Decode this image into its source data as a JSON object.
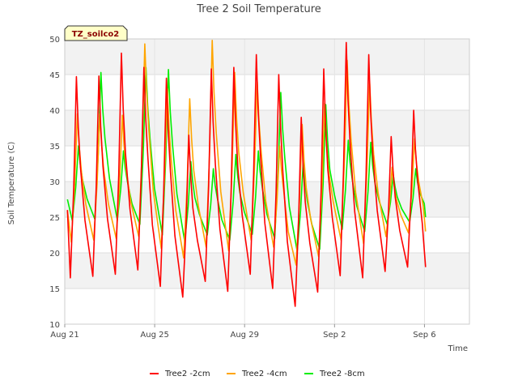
{
  "chart_data": {
    "type": "line",
    "title": "Tree 2 Soil Temperature",
    "xlabel": "Time",
    "ylabel": "Soil Temperature (C)",
    "badge": "TZ_soilco2",
    "ylim": [
      10,
      50
    ],
    "y_ticks": [
      "10",
      "15",
      "20",
      "25",
      "30",
      "35",
      "40",
      "45",
      "50"
    ],
    "x_start": "Aug 21",
    "x_end": "Sep 8",
    "x_ticks": [
      {
        "label": "Aug 21",
        "day": 0
      },
      {
        "label": "Aug 25",
        "day": 4
      },
      {
        "label": "Aug 29",
        "day": 8
      },
      {
        "label": "Sep 2",
        "day": 12
      },
      {
        "label": "Sep 6",
        "day": 16
      }
    ],
    "x_days_range": [
      0,
      18
    ],
    "grid": true,
    "legend_position": "bottom",
    "series": [
      {
        "name": "Tree2 -2cm",
        "color": "#ff0000",
        "daily_min": [
          16.5,
          16.7,
          17.0,
          17.6,
          15.3,
          13.8,
          16.0,
          14.6,
          17.0,
          15.0,
          12.5,
          14.5,
          16.8,
          16.5,
          17.4,
          18.0
        ],
        "daily_max": [
          44.7,
          44.8,
          48.0,
          46.0,
          44.5,
          36.5,
          45.8,
          46.0,
          47.8,
          45.0,
          39.0,
          45.8,
          49.5,
          47.8,
          36.3,
          40.0
        ],
        "end_value": 18.0
      },
      {
        "name": "Tree2 -4cm",
        "color": "#ffa500",
        "daily_min": [
          21.5,
          21.8,
          22.0,
          22.3,
          20.6,
          19.3,
          20.8,
          20.3,
          21.8,
          20.8,
          18.3,
          19.5,
          21.8,
          21.3,
          22.3,
          22.8
        ],
        "daily_max": [
          39.5,
          39.5,
          39.3,
          49.3,
          43.0,
          41.6,
          49.8,
          45.3,
          44.0,
          35.0,
          38.0,
          41.0,
          47.0,
          44.0,
          32.0,
          36.0
        ],
        "end_value": 23.0
      },
      {
        "name": "Tree2 -8cm",
        "color": "#00ee00",
        "daily_min": [
          24.5,
          24.7,
          24.6,
          24.0,
          22.5,
          21.5,
          22.5,
          21.8,
          22.6,
          22.0,
          20.2,
          20.5,
          23.3,
          23.0,
          24.0,
          24.3
        ],
        "daily_max": [
          35.0,
          45.3,
          34.3,
          46.0,
          45.7,
          32.8,
          31.8,
          33.8,
          34.3,
          42.5,
          33.0,
          40.8,
          35.8,
          35.5,
          31.0,
          31.8
        ],
        "start_value": 27.5,
        "end_value": 25.0
      }
    ]
  }
}
